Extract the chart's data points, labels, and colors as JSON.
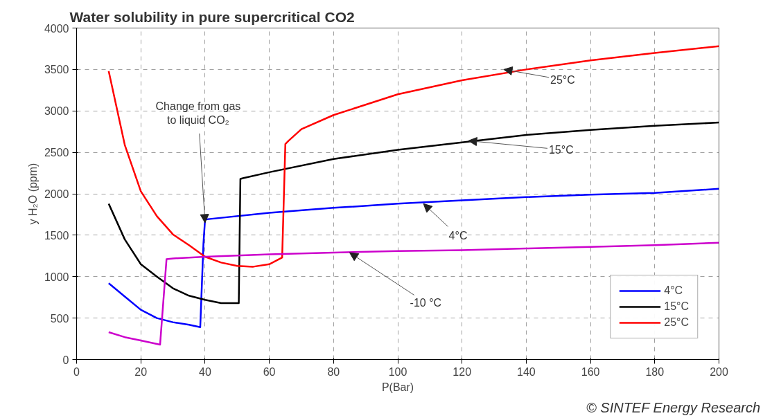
{
  "chart_data": {
    "type": "line",
    "title": "Water solubility in pure supercritical CO2",
    "xlabel": "P(Bar)",
    "ylabel": "y H₂O (ppm)",
    "xlim": [
      0,
      200
    ],
    "ylim": [
      0,
      4000
    ],
    "xticks": [
      0,
      20,
      40,
      60,
      80,
      100,
      120,
      140,
      160,
      180,
      200
    ],
    "yticks": [
      0,
      500,
      1000,
      1500,
      2000,
      2500,
      3000,
      3500,
      4000
    ],
    "grid": true,
    "legend": "bottom right",
    "marker": "none",
    "line_style": "solid",
    "series": [
      {
        "name": "4°C",
        "color": "#0000ff",
        "x": [
          10,
          15,
          20,
          25,
          30,
          35,
          38.5,
          39.5,
          40,
          60,
          80,
          100,
          120,
          140,
          160,
          180,
          200
        ],
        "values": [
          920,
          760,
          600,
          500,
          450,
          420,
          390,
          1400,
          1690,
          1770,
          1830,
          1880,
          1920,
          1960,
          1990,
          2010,
          2060
        ]
      },
      {
        "name": "15°C",
        "color": "#000000",
        "x": [
          10,
          15,
          20,
          25,
          30,
          35,
          40,
          45,
          50.5,
          51,
          52,
          60,
          80,
          100,
          120,
          140,
          160,
          180,
          200
        ],
        "values": [
          1880,
          1450,
          1150,
          1000,
          860,
          770,
          720,
          680,
          680,
          2180,
          2190,
          2260,
          2420,
          2530,
          2620,
          2710,
          2770,
          2820,
          2860
        ]
      },
      {
        "name": "25°C",
        "color": "#ff0000",
        "x": [
          10,
          15,
          20,
          25,
          30,
          35,
          40,
          45,
          50,
          55,
          60,
          64,
          65,
          66,
          70,
          80,
          100,
          120,
          140,
          160,
          180,
          200
        ],
        "values": [
          3480,
          2590,
          2030,
          1730,
          1510,
          1380,
          1240,
          1170,
          1130,
          1120,
          1150,
          1230,
          2600,
          2640,
          2780,
          2950,
          3200,
          3370,
          3500,
          3610,
          3700,
          3780
        ]
      },
      {
        "color": "#cc00cc",
        "x": [
          10,
          15,
          20,
          26,
          28,
          30,
          40,
          60,
          80,
          100,
          120,
          140,
          160,
          180,
          200
        ],
        "values": [
          330,
          270,
          230,
          180,
          1210,
          1220,
          1240,
          1270,
          1290,
          1310,
          1320,
          1340,
          1360,
          1380,
          1410
        ]
      }
    ],
    "annotations": [
      {
        "text": "25°C",
        "x": 133,
        "y": 3500
      },
      {
        "text": "15°C",
        "x": 122,
        "y": 2640
      },
      {
        "text": "4°C",
        "x": 108,
        "y": 1880
      },
      {
        "text": "-10 °C",
        "x": 85,
        "y": 1290
      },
      {
        "text": "Change from gas\nto liquid CO₂",
        "x": 40,
        "y": 1650
      },
      "© SINTEF Energy Research"
    ]
  }
}
